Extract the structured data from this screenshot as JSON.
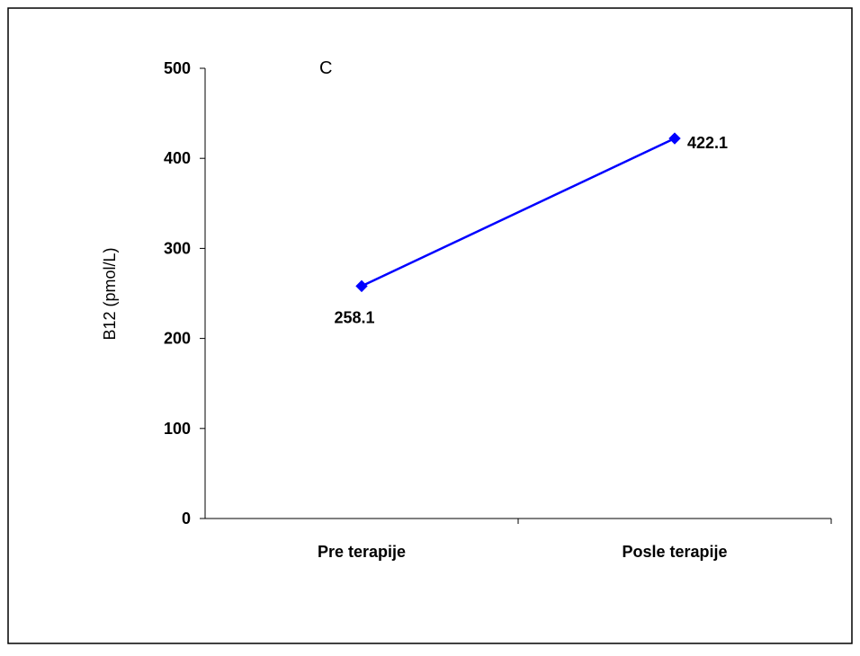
{
  "chart_data": {
    "type": "line",
    "panel_label": "C",
    "ylabel": "B12 (pmol/L)",
    "xlabel": "",
    "categories": [
      "Pre terapije",
      "Posle terapije"
    ],
    "series": [
      {
        "values": [
          258.1,
          422.1
        ],
        "data_labels": [
          "258.1",
          "422.1"
        ],
        "color": "#0000ff",
        "marker": "diamond"
      }
    ],
    "ylim": [
      0,
      500
    ],
    "yticks": [
      0,
      100,
      200,
      300,
      400,
      500
    ],
    "ytick_labels": [
      "0",
      "100",
      "200",
      "300",
      "400",
      "500"
    ],
    "grid": false,
    "legend": "none"
  }
}
